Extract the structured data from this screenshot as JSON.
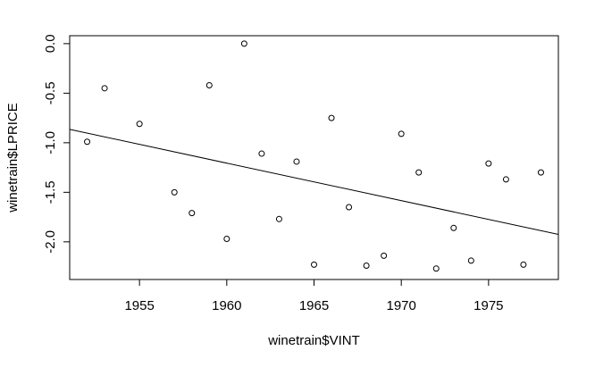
{
  "chart_data": {
    "type": "scatter",
    "title": "",
    "xlabel": "winetrain$VINT",
    "ylabel": "winetrain$LPRICE",
    "xlim": [
      1951.0,
      1979.0
    ],
    "ylim": [
      -2.38,
      0.08
    ],
    "x_ticks": [
      1955,
      1960,
      1965,
      1970,
      1975
    ],
    "x_tick_labels": [
      "1955",
      "1960",
      "1965",
      "1970",
      "1975"
    ],
    "y_ticks": [
      0.0,
      -0.5,
      -1.0,
      -1.5,
      -2.0
    ],
    "y_tick_labels": [
      "0.0",
      "-0.5",
      "-1.0",
      "-1.5",
      "-2.0"
    ],
    "grid": false,
    "legend": "none",
    "points": [
      {
        "x": 1952,
        "y": -0.99
      },
      {
        "x": 1953,
        "y": -0.45
      },
      {
        "x": 1955,
        "y": -0.81
      },
      {
        "x": 1957,
        "y": -1.5
      },
      {
        "x": 1958,
        "y": -1.71
      },
      {
        "x": 1959,
        "y": -0.42
      },
      {
        "x": 1960,
        "y": -1.97
      },
      {
        "x": 1961,
        "y": 0.0
      },
      {
        "x": 1962,
        "y": -1.11
      },
      {
        "x": 1963,
        "y": -1.77
      },
      {
        "x": 1964,
        "y": -1.19
      },
      {
        "x": 1965,
        "y": -2.23
      },
      {
        "x": 1966,
        "y": -0.75
      },
      {
        "x": 1967,
        "y": -1.65
      },
      {
        "x": 1968,
        "y": -2.24
      },
      {
        "x": 1969,
        "y": -2.14
      },
      {
        "x": 1970,
        "y": -0.91
      },
      {
        "x": 1971,
        "y": -1.3
      },
      {
        "x": 1972,
        "y": -2.27
      },
      {
        "x": 1973,
        "y": -1.86
      },
      {
        "x": 1974,
        "y": -2.19
      },
      {
        "x": 1975,
        "y": -1.21
      },
      {
        "x": 1976,
        "y": -1.37
      },
      {
        "x": 1977,
        "y": -2.23
      },
      {
        "x": 1978,
        "y": -1.3
      }
    ],
    "regression_line": {
      "x": [
        1951.0,
        1979.0
      ],
      "y": [
        -0.865,
        -1.925
      ]
    },
    "colors": {
      "points": "#000000",
      "line": "#000000",
      "axes": "#000000",
      "background": "#ffffff"
    }
  }
}
